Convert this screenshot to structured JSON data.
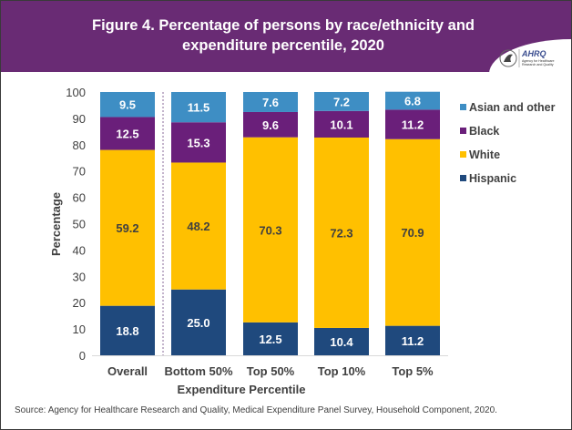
{
  "header": {
    "title_line1": "Figure 4. Percentage of persons by race/ethnicity and",
    "title_line2": "expenditure percentile, 2020",
    "logo_text": "AHRQ",
    "logo_subtext1": "Agency for Healthcare",
    "logo_subtext2": "Research and Quality"
  },
  "colors": {
    "header_bg": "#692b74",
    "Asian and other": "#3e8ec4",
    "Black": "#6a1f7a",
    "White": "#ffc000",
    "Hispanic": "#1f497d"
  },
  "chart_data": {
    "type": "bar",
    "stacked": true,
    "title": "Figure 4. Percentage of persons by race/ethnicity and expenditure percentile, 2020",
    "xlabel": "Expenditure Percentile",
    "ylabel": "Percentage",
    "ylim": [
      0,
      100
    ],
    "yticks": [
      0,
      10,
      20,
      30,
      40,
      50,
      60,
      70,
      80,
      90,
      100
    ],
    "categories": [
      "Overall",
      "Bottom 50%",
      "Top 50%",
      "Top 10%",
      "Top 5%"
    ],
    "series": [
      {
        "name": "Hispanic",
        "values": [
          18.8,
          25.0,
          12.5,
          10.4,
          11.2
        ]
      },
      {
        "name": "White",
        "values": [
          59.2,
          48.2,
          70.3,
          72.3,
          70.9
        ]
      },
      {
        "name": "Black",
        "values": [
          12.5,
          15.3,
          9.6,
          10.1,
          11.2
        ]
      },
      {
        "name": "Asian and other",
        "values": [
          9.5,
          11.5,
          7.6,
          7.2,
          6.8
        ]
      }
    ],
    "legend_order": [
      "Asian and other",
      "Black",
      "White",
      "Hispanic"
    ],
    "legend_position": "right",
    "grid": false,
    "divider_after_category": "Overall"
  },
  "source": "Source: Agency for Healthcare Research and Quality, Medical Expenditure Panel Survey, Household Component, 2020."
}
